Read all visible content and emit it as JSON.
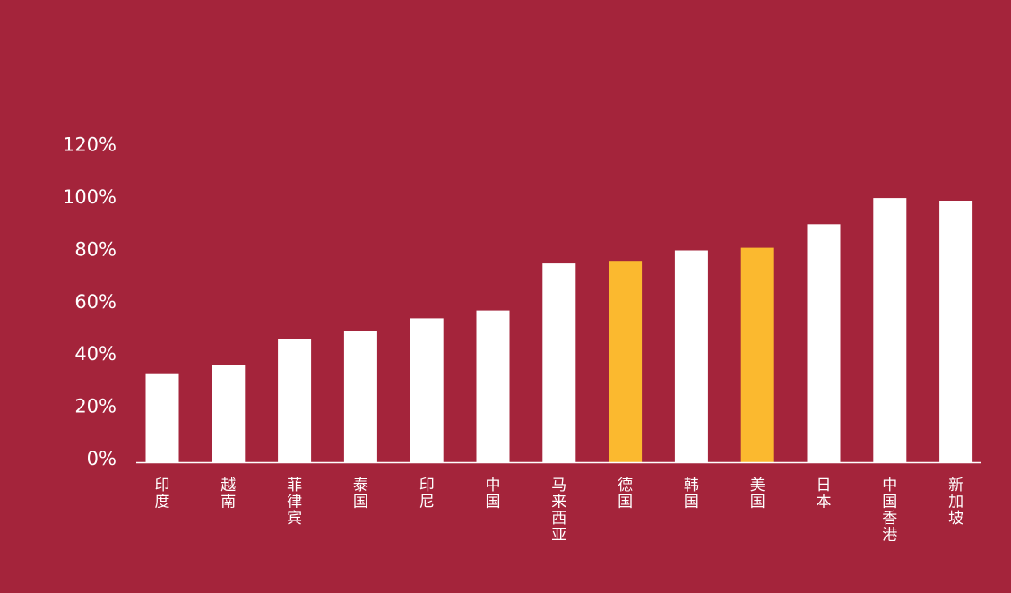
{
  "colors": {
    "background": "#a4243b",
    "bar_default": "#ffffff",
    "bar_highlight": "#fbb92f",
    "axis": "#ffffff",
    "text": "#ffffff"
  },
  "chart_data": {
    "type": "bar",
    "title": "",
    "xlabel": "",
    "ylabel": "",
    "ylim": [
      0,
      120
    ],
    "y_ticks": [
      {
        "value": 0,
        "label": "0%"
      },
      {
        "value": 20,
        "label": "20%"
      },
      {
        "value": 40,
        "label": "40%"
      },
      {
        "value": 60,
        "label": "60%"
      },
      {
        "value": 80,
        "label": "80%"
      },
      {
        "value": 100,
        "label": "100%"
      },
      {
        "value": 120,
        "label": "120%"
      }
    ],
    "grid": false,
    "legend": "none",
    "categories": [
      "印度",
      "越南",
      "菲律宾",
      "泰国",
      "印尼",
      "中国",
      "马来西亚",
      "德国",
      "韩国",
      "美国",
      "日本",
      "中国香港",
      "新加坡"
    ],
    "values": [
      34,
      37,
      47,
      50,
      55,
      58,
      76,
      77,
      81,
      82,
      91,
      101,
      100
    ],
    "highlighted": [
      "德国",
      "美国"
    ]
  }
}
